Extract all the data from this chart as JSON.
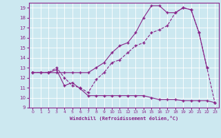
{
  "xlabel": "Windchill (Refroidissement éolien,°C)",
  "bg_color": "#cce8f0",
  "line_color": "#882288",
  "xlim": [
    -0.5,
    23.5
  ],
  "ylim": [
    9,
    19.5
  ],
  "xticks": [
    0,
    1,
    2,
    3,
    4,
    5,
    6,
    7,
    8,
    9,
    10,
    11,
    12,
    13,
    14,
    15,
    16,
    17,
    18,
    19,
    20,
    21,
    22,
    23
  ],
  "yticks": [
    9,
    10,
    11,
    12,
    13,
    14,
    15,
    16,
    17,
    18,
    19
  ],
  "line1_x": [
    0,
    1,
    2,
    3,
    4,
    5,
    6,
    7,
    8,
    9,
    10,
    11,
    12,
    13,
    14,
    15,
    16,
    17,
    18,
    19,
    20,
    21,
    22,
    23
  ],
  "line1_y": [
    12.5,
    12.5,
    12.5,
    12.8,
    11.2,
    11.5,
    10.9,
    10.2,
    10.2,
    10.2,
    10.2,
    10.2,
    10.2,
    10.2,
    10.2,
    10.0,
    9.8,
    9.8,
    9.8,
    9.7,
    9.7,
    9.7,
    9.7,
    9.5
  ],
  "line2_x": [
    0,
    2,
    3,
    4,
    5,
    6,
    7,
    8,
    9,
    10,
    11,
    12,
    13,
    14,
    15,
    16,
    17,
    18,
    19,
    20,
    21,
    22,
    23
  ],
  "line2_y": [
    12.5,
    12.5,
    13.0,
    12.0,
    11.2,
    11.0,
    10.5,
    11.8,
    12.5,
    13.5,
    13.8,
    14.5,
    15.2,
    15.5,
    16.5,
    16.8,
    17.2,
    18.5,
    19.0,
    18.8,
    16.5,
    13.0,
    9.5
  ],
  "line3_x": [
    0,
    1,
    2,
    3,
    4,
    5,
    6,
    7,
    8,
    9,
    10,
    11,
    12,
    13,
    14,
    15,
    16,
    17,
    18,
    19,
    20,
    21,
    22
  ],
  "line3_y": [
    12.5,
    12.5,
    12.5,
    12.5,
    12.5,
    12.5,
    12.5,
    12.5,
    13.0,
    13.5,
    14.5,
    15.2,
    15.5,
    16.5,
    18.0,
    19.2,
    19.2,
    18.5,
    18.5,
    19.0,
    18.8,
    16.5,
    13.0
  ]
}
